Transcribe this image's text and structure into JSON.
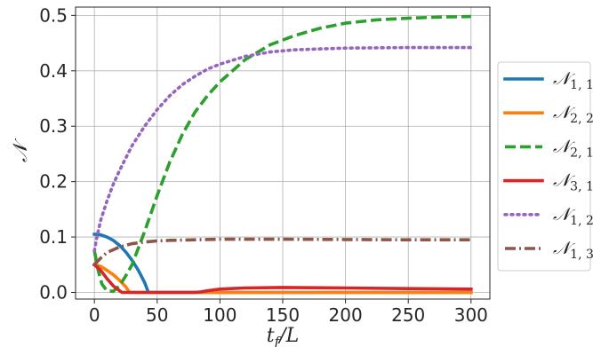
{
  "chart_data": {
    "type": "line",
    "title": "",
    "xlabel": "t_f/L",
    "xlabel_main": "t",
    "xlabel_sub": "f",
    "xlabel_rest": "/L",
    "ylabel": "𝒩",
    "xlim": [
      -15,
      315
    ],
    "ylim": [
      -0.012,
      0.515
    ],
    "xticks": [
      0,
      50,
      100,
      150,
      200,
      250,
      300
    ],
    "xtick_labels": [
      "0",
      "50",
      "100",
      "150",
      "200",
      "250",
      "300"
    ],
    "yticks": [
      0.0,
      0.1,
      0.2,
      0.3,
      0.4,
      0.5
    ],
    "ytick_labels": [
      "0.0",
      "0.1",
      "0.2",
      "0.3",
      "0.4",
      "0.5"
    ],
    "grid": true,
    "legend_position": "right-outside",
    "series": [
      {
        "name": "𝒩_{1,1}",
        "symbol": "𝒩",
        "sub": "1, 1",
        "color": "#1f77b4",
        "linestyle": "solid",
        "x": [
          0,
          5,
          10,
          15,
          20,
          25,
          30,
          35,
          40,
          43,
          45,
          100,
          200,
          300
        ],
        "y": [
          0.105,
          0.104,
          0.1,
          0.094,
          0.085,
          0.073,
          0.058,
          0.04,
          0.018,
          0.0,
          0.0,
          0.0,
          0.0,
          0.0
        ]
      },
      {
        "name": "𝒩_{2,2}",
        "symbol": "𝒩",
        "sub": "2, 2",
        "color": "#ff7f0e",
        "linestyle": "solid",
        "x": [
          0,
          5,
          10,
          15,
          20,
          25,
          28,
          30,
          100,
          200,
          300
        ],
        "y": [
          0.05,
          0.047,
          0.04,
          0.032,
          0.022,
          0.01,
          0.0,
          0.0,
          0.0,
          0.0,
          0.0
        ]
      },
      {
        "name": "𝒩_{2,1}",
        "symbol": "𝒩",
        "sub": "2, 1",
        "color": "#2ca02c",
        "linestyle": "dashed",
        "x": [
          0,
          3,
          6,
          10,
          15,
          20,
          25,
          30,
          40,
          50,
          60,
          70,
          80,
          90,
          100,
          120,
          140,
          160,
          180,
          200,
          225,
          250,
          275,
          300
        ],
        "y": [
          0.075,
          0.04,
          0.015,
          0.003,
          0.002,
          0.012,
          0.03,
          0.05,
          0.11,
          0.175,
          0.235,
          0.285,
          0.325,
          0.355,
          0.38,
          0.42,
          0.447,
          0.464,
          0.477,
          0.486,
          0.492,
          0.495,
          0.497,
          0.498
        ]
      },
      {
        "name": "𝒩_{3,1}",
        "symbol": "𝒩",
        "sub": "3, 1",
        "color": "#d62728",
        "linestyle": "solid",
        "x": [
          0,
          5,
          10,
          15,
          20,
          22,
          50,
          80,
          85,
          90,
          100,
          120,
          150,
          200,
          250,
          300
        ],
        "y": [
          0.05,
          0.04,
          0.025,
          0.012,
          0.003,
          0.0,
          0.0,
          0.0,
          0.001,
          0.003,
          0.006,
          0.008,
          0.009,
          0.008,
          0.007,
          0.006
        ]
      },
      {
        "name": "𝒩_{1,2}",
        "symbol": "𝒩",
        "sub": "1, 2",
        "color": "#9467bd",
        "linestyle": "dotted",
        "x": [
          0,
          2,
          5,
          10,
          15,
          20,
          30,
          40,
          50,
          60,
          70,
          80,
          90,
          100,
          120,
          140,
          160,
          200,
          250,
          300
        ],
        "y": [
          0.075,
          0.1,
          0.13,
          0.165,
          0.195,
          0.22,
          0.265,
          0.3,
          0.33,
          0.355,
          0.375,
          0.39,
          0.403,
          0.412,
          0.426,
          0.434,
          0.438,
          0.441,
          0.442,
          0.442
        ]
      },
      {
        "name": "𝒩_{1,3}",
        "symbol": "𝒩",
        "sub": "1, 3",
        "color": "#8c564b",
        "linestyle": "dashdot",
        "x": [
          0,
          5,
          10,
          20,
          30,
          40,
          50,
          60,
          80,
          100,
          130,
          150,
          200,
          250,
          300
        ],
        "y": [
          0.05,
          0.062,
          0.072,
          0.082,
          0.088,
          0.091,
          0.093,
          0.094,
          0.095,
          0.096,
          0.096,
          0.096,
          0.0955,
          0.095,
          0.095
        ]
      }
    ]
  }
}
